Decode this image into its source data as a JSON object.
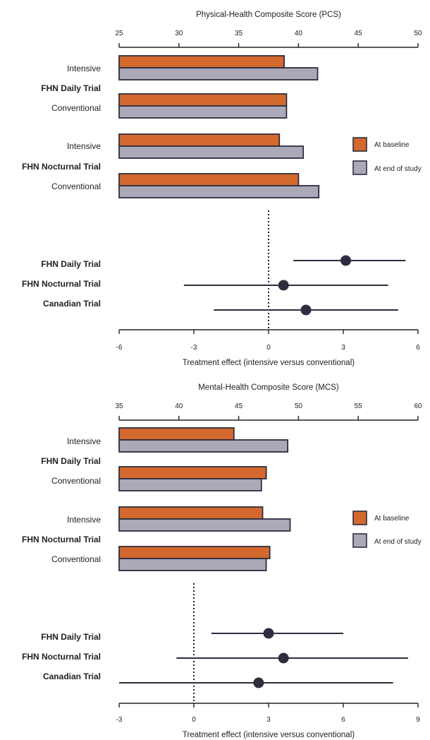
{
  "colors": {
    "baseline": "#D4692F",
    "end_of_study": "#ABA8B8",
    "outline": "#2E2C3E",
    "point": "#2E2C3E"
  },
  "chart_data": [
    {
      "type": "bar",
      "orientation": "horizontal",
      "title": "Physical-Health Composite Score (PCS)",
      "xlim": [
        25,
        50
      ],
      "ticks": [
        "25",
        "30",
        "35",
        "40",
        "45",
        "50"
      ],
      "groups": [
        {
          "name": "FHN Daily Trial",
          "rows": [
            {
              "label": "Intensive",
              "baseline": 38.8,
              "end": 41.6
            },
            {
              "label": "Conventional",
              "baseline": 39.0,
              "end": 39.0
            }
          ]
        },
        {
          "name": "FHN Nocturnal Trial",
          "rows": [
            {
              "label": "Intensive",
              "baseline": 38.4,
              "end": 40.4
            },
            {
              "label": "Conventional",
              "baseline": 40.0,
              "end": 41.7
            }
          ]
        }
      ],
      "legend": {
        "baseline": "At baseline",
        "end": "At end of study",
        "position": "right"
      }
    },
    {
      "type": "scatter",
      "subtype": "forest",
      "xlabel": "Treatment effect (intensive versus conventional)",
      "xlim": [
        -6,
        6
      ],
      "ticks": [
        "-6",
        "-3",
        "0",
        "3",
        "6"
      ],
      "reference_line": 0,
      "trials": [
        {
          "name": "FHN Daily Trial",
          "estimate": 3.1,
          "lower": 1.0,
          "upper": 5.5
        },
        {
          "name": "FHN Nocturnal Trial",
          "estimate": 0.6,
          "lower": -3.4,
          "upper": 4.8
        },
        {
          "name": "Canadian Trial",
          "estimate": 1.5,
          "lower": -2.2,
          "upper": 5.2
        }
      ]
    },
    {
      "type": "bar",
      "orientation": "horizontal",
      "title": "Mental-Health Composite Score (MCS)",
      "xlim": [
        35,
        60
      ],
      "ticks": [
        "35",
        "40",
        "45",
        "50",
        "55",
        "60"
      ],
      "groups": [
        {
          "name": "FHN Daily Trial",
          "rows": [
            {
              "label": "Intensive",
              "baseline": 44.6,
              "end": 49.1
            },
            {
              "label": "Conventional",
              "baseline": 47.3,
              "end": 46.9
            }
          ]
        },
        {
          "name": "FHN Nocturnal Trial",
          "rows": [
            {
              "label": "Intensive",
              "baseline": 47.0,
              "end": 49.3
            },
            {
              "label": "Conventional",
              "baseline": 47.6,
              "end": 47.3
            }
          ]
        }
      ],
      "legend": {
        "baseline": "At baseline",
        "end": "At end of study",
        "position": "right"
      }
    },
    {
      "type": "scatter",
      "subtype": "forest",
      "xlabel": "Treatment effect (intensive versus conventional)",
      "xlim": [
        -3,
        9
      ],
      "ticks": [
        "-3",
        "0",
        "3",
        "6",
        "9"
      ],
      "reference_line": 0,
      "trials": [
        {
          "name": "FHN Daily Trial",
          "estimate": 3.0,
          "lower": 0.7,
          "upper": 6.0
        },
        {
          "name": "FHN Nocturnal Trial",
          "estimate": 3.6,
          "lower": -0.7,
          "upper": 8.6
        },
        {
          "name": "Canadian Trial",
          "estimate": 2.6,
          "lower": -3.0,
          "upper": 8.0
        }
      ]
    }
  ]
}
